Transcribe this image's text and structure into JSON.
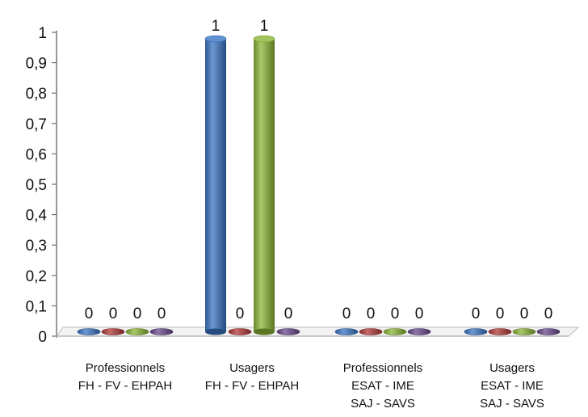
{
  "chart_data": {
    "type": "bar",
    "categories": [
      [
        "Professionnels",
        "FH - FV - EHPAH"
      ],
      [
        "Usagers",
        "FH - FV - EHPAH"
      ],
      [
        "Professionnels",
        "ESAT - IME",
        "SAJ - SAVS"
      ],
      [
        "Usagers",
        "ESAT - IME",
        "SAJ - SAVS"
      ]
    ],
    "series": [
      {
        "values": [
          0,
          1,
          0,
          0
        ],
        "color": "#3a75c4"
      },
      {
        "values": [
          0,
          0,
          0,
          0
        ],
        "color": "#b23a38"
      },
      {
        "values": [
          0,
          1,
          0,
          0
        ],
        "color": "#8cb535"
      },
      {
        "values": [
          0,
          0,
          0,
          0
        ],
        "color": "#6a4a8e"
      }
    ],
    "ylim": [
      0,
      1
    ],
    "yticks": [
      "0",
      "0,1",
      "0,2",
      "0,3",
      "0,4",
      "0,5",
      "0,6",
      "0,7",
      "0,8",
      "0,9",
      "1"
    ],
    "data_labels": [
      [
        "0",
        "0",
        "0",
        "0"
      ],
      [
        "1",
        "0",
        "1",
        "0"
      ],
      [
        "0",
        "0",
        "0",
        "0"
      ],
      [
        "0",
        "0",
        "0",
        "0"
      ]
    ],
    "title": "",
    "xlabel": "",
    "ylabel": "",
    "grid": false,
    "legend": "none",
    "style": "3d-cylinder"
  }
}
